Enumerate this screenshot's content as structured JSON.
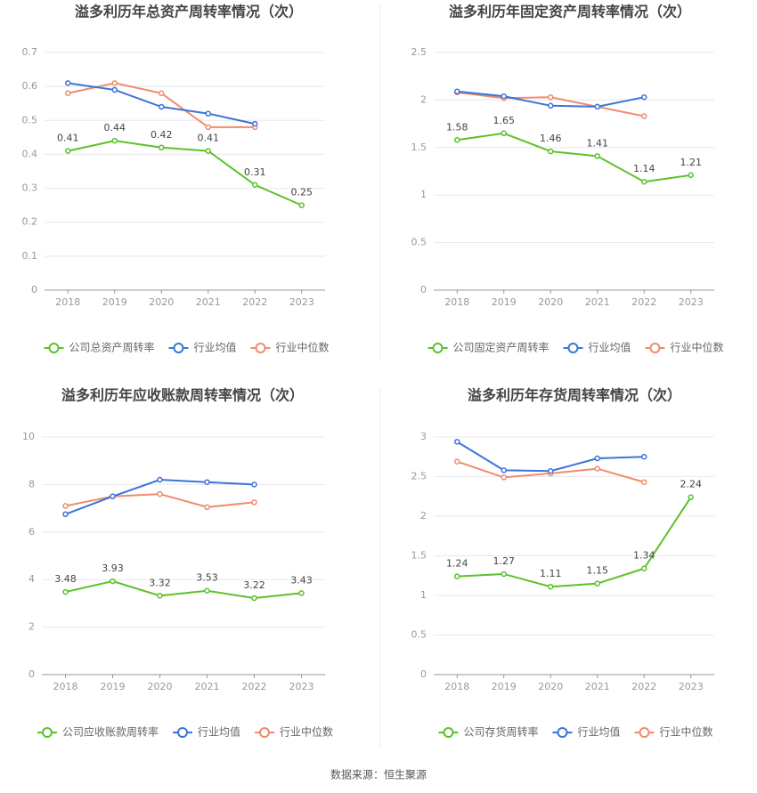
{
  "chart_data": [
    {
      "type": "line",
      "title": "溢多利历年总资产周转率情况（次）",
      "categories": [
        "2018",
        "2019",
        "2020",
        "2021",
        "2022",
        "2023"
      ],
      "series": [
        {
          "name": "公司总资产周转率",
          "color": "#5cc12a",
          "values": [
            0.41,
            0.44,
            0.42,
            0.41,
            0.31,
            0.25
          ]
        },
        {
          "name": "行业均值",
          "color": "#3b74d8",
          "values": [
            0.61,
            0.59,
            0.54,
            0.52,
            0.49,
            null
          ]
        },
        {
          "name": "行业中位数",
          "color": "#f08b6b",
          "values": [
            0.58,
            0.61,
            0.58,
            0.48,
            0.48,
            null
          ]
        }
      ],
      "ylim": [
        0,
        0.7
      ],
      "yticks": [
        0,
        0.1,
        0.2,
        0.3,
        0.4,
        0.5,
        0.6,
        0.7
      ],
      "grid": true,
      "legend": "bottom"
    },
    {
      "type": "line",
      "title": "溢多利历年固定资产周转率情况（次）",
      "categories": [
        "2018",
        "2019",
        "2020",
        "2021",
        "2022",
        "2023"
      ],
      "series": [
        {
          "name": "公司固定资产周转率",
          "color": "#5cc12a",
          "values": [
            1.58,
            1.65,
            1.46,
            1.41,
            1.14,
            1.21
          ]
        },
        {
          "name": "行业均值",
          "color": "#3b74d8",
          "values": [
            2.09,
            2.04,
            1.94,
            1.93,
            2.03,
            null
          ]
        },
        {
          "name": "行业中位数",
          "color": "#f08b6b",
          "values": [
            2.08,
            2.02,
            2.03,
            1.93,
            1.83,
            null
          ]
        }
      ],
      "ylim": [
        0,
        2.5
      ],
      "yticks": [
        0,
        0.5,
        1,
        1.5,
        2,
        2.5
      ],
      "grid": true,
      "legend": "bottom"
    },
    {
      "type": "line",
      "title": "溢多利历年应收账款周转率情况（次）",
      "categories": [
        "2018",
        "2019",
        "2020",
        "2021",
        "2022",
        "2023"
      ],
      "series": [
        {
          "name": "公司应收账款周转率",
          "color": "#5cc12a",
          "values": [
            3.48,
            3.93,
            3.32,
            3.53,
            3.22,
            3.43
          ]
        },
        {
          "name": "行业均值",
          "color": "#3b74d8",
          "values": [
            6.75,
            7.5,
            8.2,
            8.1,
            8.0,
            null
          ]
        },
        {
          "name": "行业中位数",
          "color": "#f08b6b",
          "values": [
            7.1,
            7.5,
            7.6,
            7.05,
            7.25,
            null
          ]
        }
      ],
      "ylim": [
        0,
        10
      ],
      "yticks": [
        0,
        2,
        4,
        6,
        8,
        10
      ],
      "grid": true,
      "legend": "bottom"
    },
    {
      "type": "line",
      "title": "溢多利历年存货周转率情况（次）",
      "categories": [
        "2018",
        "2019",
        "2020",
        "2021",
        "2022",
        "2023"
      ],
      "series": [
        {
          "name": "公司存货周转率",
          "color": "#5cc12a",
          "values": [
            1.24,
            1.27,
            1.11,
            1.15,
            1.34,
            2.24
          ]
        },
        {
          "name": "行业均值",
          "color": "#3b74d8",
          "values": [
            2.94,
            2.58,
            2.57,
            2.73,
            2.75,
            null
          ]
        },
        {
          "name": "行业中位数",
          "color": "#f08b6b",
          "values": [
            2.69,
            2.49,
            2.54,
            2.6,
            2.43,
            null
          ]
        }
      ],
      "ylim": [
        0,
        3
      ],
      "yticks": [
        0,
        0.5,
        1,
        1.5,
        2,
        2.5,
        3
      ],
      "grid": true,
      "legend": "bottom"
    }
  ],
  "source": "数据来源：恒生聚源"
}
